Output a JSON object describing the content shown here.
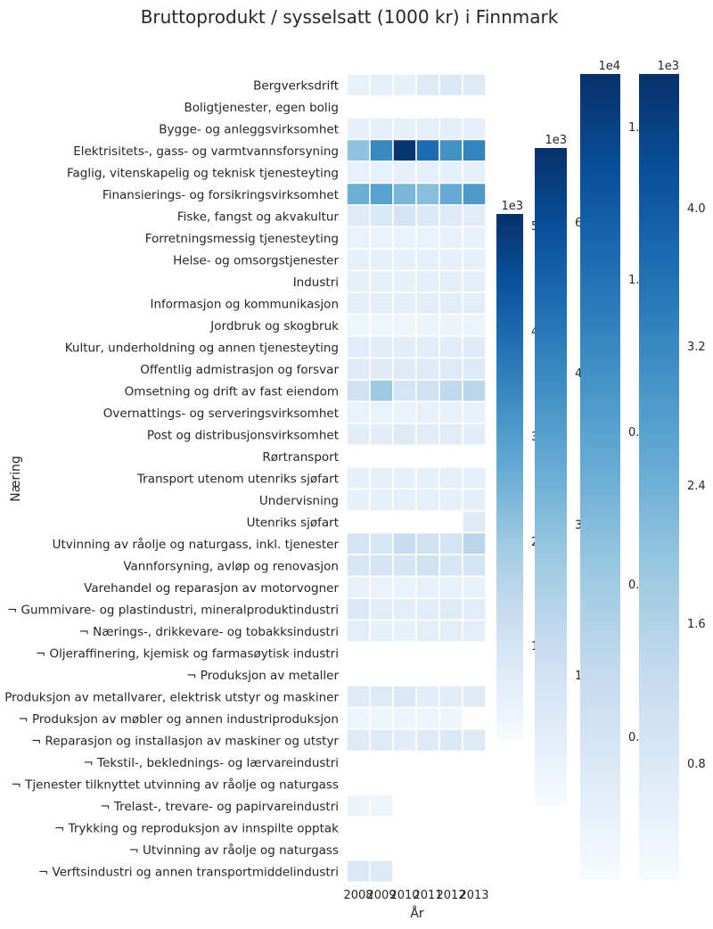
{
  "chart_data": {
    "type": "heatmap",
    "title": "Bruttoprodukt / sysselsatt (1000 kr) i Finnmark",
    "xlabel": "År",
    "ylabel": "Næring",
    "x": [
      "2008",
      "2009",
      "2010",
      "2011",
      "2012",
      "2013"
    ],
    "rows": [
      "Bergverksdrift",
      "Boligtjenester, egen bolig",
      "Bygge- og anleggsvirksomhet",
      "Elektrisitets-, gass- og varmtvannsforsyning",
      "Faglig, vitenskapelig og teknisk tjenesteyting",
      "Finansierings- og forsikringsvirksomhet",
      "Fiske, fangst og akvakultur",
      "Forretningsmessig tjenesteyting",
      "Helse- og omsorgstjenester",
      "Industri",
      "Informasjon og kommunikasjon",
      "Jordbruk og skogbruk",
      "Kultur, underholdning og annen tjenesteyting",
      "Offentlig admistrasjon og forsvar",
      "Omsetning og drift av fast eiendom",
      "Overnattings- og serveringsvirksomhet",
      "Post og distribusjonsvirksomhet",
      "Rørtransport",
      "Transport utenom utenriks sjøfart",
      "Undervisning",
      "Utenriks sjøfart",
      "Utvinning av råolje og naturgass, inkl. tjenester",
      "Vannforsyning, avløp og renovasjon",
      "Varehandel og reparasjon av motorvogner",
      "¬ Gummivare- og plastindustri, mineralproduktindustri",
      "¬ Nærings-, drikkevare- og tobakksindustri",
      "¬ Oljeraffinering, kjemisk og farmasøytisk industri",
      "¬ Produksjon av metaller",
      "¬ Produksjon av metallvarer, elektrisk utstyr og maskiner",
      "¬ Produksjon av møbler og annen industriproduksjon",
      "¬ Reparasjon og installasjon av maskiner og utstyr",
      "¬ Tekstil-, beklednings- og lærvareindustri",
      "¬ Tjenester tilknyttet utvinning av råolje og naturgass",
      "¬ Trelast-, trevare- og papirvareindustri",
      "¬ Trykking og reproduksjon av innspilte opptak",
      "¬ Utvinning av råolje og naturgass",
      "¬ Verftsindustri og annen transportmiddelindustri"
    ],
    "values": [
      [
        450,
        520,
        480,
        700,
        780,
        720
      ],
      [
        null,
        null,
        null,
        null,
        null,
        null
      ],
      [
        480,
        500,
        490,
        520,
        560,
        540
      ],
      [
        2300,
        3700,
        5500,
        4300,
        3500,
        3800
      ],
      [
        430,
        450,
        460,
        470,
        480,
        490
      ],
      [
        2800,
        3100,
        2600,
        2400,
        2900,
        3300
      ],
      [
        700,
        850,
        1000,
        800,
        700,
        650
      ],
      [
        400,
        380,
        390,
        410,
        420,
        430
      ],
      [
        480,
        470,
        470,
        480,
        490,
        500
      ],
      [
        500,
        480,
        490,
        520,
        550,
        560
      ],
      [
        550,
        570,
        580,
        600,
        610,
        630
      ],
      [
        300,
        280,
        290,
        310,
        320,
        330
      ],
      [
        650,
        620,
        600,
        640,
        650,
        660
      ],
      [
        700,
        680,
        690,
        700,
        710,
        720
      ],
      [
        1100,
        2100,
        1000,
        1100,
        1500,
        1600
      ],
      [
        400,
        410,
        390,
        420,
        430,
        440
      ],
      [
        600,
        620,
        700,
        650,
        640,
        610
      ],
      [
        null,
        null,
        null,
        null,
        null,
        null
      ],
      [
        480,
        460,
        470,
        500,
        510,
        520
      ],
      [
        500,
        510,
        520,
        530,
        540,
        550
      ],
      [
        null,
        null,
        null,
        null,
        null,
        700
      ],
      [
        1000,
        900,
        1300,
        1100,
        1000,
        1600
      ],
      [
        900,
        1000,
        950,
        1100,
        900,
        1000
      ],
      [
        420,
        400,
        410,
        430,
        440,
        450
      ],
      [
        800,
        650,
        600,
        650,
        700,
        600
      ],
      [
        600,
        500,
        450,
        550,
        600,
        620
      ],
      [
        null,
        null,
        null,
        null,
        null,
        null
      ],
      [
        null,
        null,
        null,
        null,
        null,
        null
      ],
      [
        700,
        750,
        800,
        650,
        600,
        700
      ],
      [
        300,
        280,
        290,
        270,
        260,
        null
      ],
      [
        700,
        750,
        650,
        700,
        800,
        750
      ],
      [
        null,
        null,
        null,
        null,
        null,
        null
      ],
      [
        null,
        null,
        null,
        null,
        null,
        null
      ],
      [
        350,
        300,
        null,
        null,
        null,
        null
      ],
      [
        null,
        null,
        null,
        null,
        null,
        null
      ],
      [
        null,
        null,
        null,
        null,
        null,
        null
      ],
      [
        800,
        750,
        null,
        null,
        null,
        null
      ]
    ],
    "colormap": "Blues",
    "colorbars": [
      {
        "offset_label": "1e3",
        "ticks": [
          "1",
          "2",
          "3",
          "4",
          "5"
        ]
      },
      {
        "offset_label": "1e3",
        "ticks": [
          "1.5",
          "3.0",
          "4.5",
          "6.0"
        ]
      },
      {
        "offset_label": "1e4",
        "ticks": [
          "0.25",
          "0.50",
          "0.75",
          "1.00",
          "1.25"
        ]
      },
      {
        "offset_label": "1e3",
        "ticks": [
          "0.8",
          "1.6",
          "2.4",
          "3.2",
          "4.0"
        ]
      }
    ]
  }
}
